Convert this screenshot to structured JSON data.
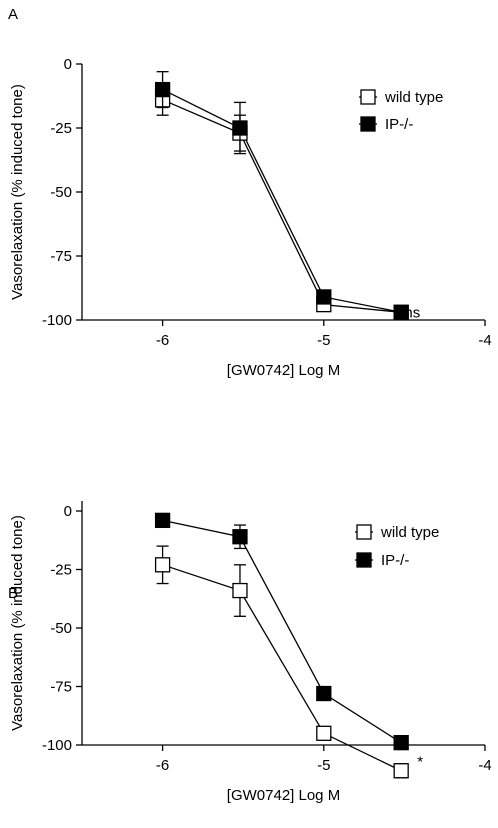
{
  "chart_data": [
    {
      "panel_label": "A",
      "type": "line",
      "xlabel": "[GW0742] Log M",
      "ylabel": "Vasorelaxation (% induced tone)",
      "xlim": [
        -6.5,
        -4
      ],
      "ylim": [
        -100,
        5
      ],
      "xticks": [
        "-6",
        "-5",
        "-4"
      ],
      "xtick_values": [
        -6,
        -5,
        -4
      ],
      "yticks": [
        "0",
        "-25",
        "-50",
        "-75",
        "-100"
      ],
      "ytick_values": [
        0,
        -25,
        -50,
        -75,
        -100
      ],
      "legend_position": "top-right",
      "annotation": {
        "text": "ns",
        "x": -4.5,
        "y": -97
      },
      "series": [
        {
          "name": "wild type",
          "marker": "open-square",
          "x": [
            -6,
            -5.52,
            -5,
            -4.52
          ],
          "y": [
            -14,
            -27,
            -94,
            -97
          ],
          "err": [
            6,
            7,
            2,
            1
          ]
        },
        {
          "name": "IP-/-",
          "marker": "filled-square",
          "x": [
            -6,
            -5.52,
            -5,
            -4.52
          ],
          "y": [
            -10,
            -25,
            -91,
            -97
          ],
          "err": [
            7,
            10,
            2,
            1
          ]
        }
      ]
    },
    {
      "panel_label": "B",
      "type": "line",
      "xlabel": "[GW0742] Log M",
      "ylabel": "Vasorelaxation (% induced tone)",
      "xlim": [
        -6.5,
        -4
      ],
      "ylim": [
        -125,
        5
      ],
      "xticks": [
        "-6",
        "-5",
        "-4"
      ],
      "xtick_values": [
        -6,
        -5,
        -4
      ],
      "yticks": [
        "0",
        "-25",
        "-50",
        "-75",
        "-100"
      ],
      "ytick_values": [
        0,
        -25,
        -50,
        -75,
        -100
      ],
      "legend_position": "top-right",
      "annotation": {
        "text": "*",
        "x": -4.42,
        "y": -107
      },
      "series": [
        {
          "name": "wild type",
          "marker": "open-square",
          "x": [
            -6,
            -5.52,
            -5,
            -4.52
          ],
          "y": [
            -23,
            -34,
            -95,
            -111
          ],
          "err": [
            8,
            11,
            2,
            3
          ]
        },
        {
          "name": "IP-/-",
          "marker": "filled-square",
          "x": [
            -6,
            -5.52,
            -5,
            -4.52
          ],
          "y": [
            -4,
            -11,
            -78,
            -99
          ],
          "err": [
            2,
            5,
            2,
            2
          ]
        }
      ]
    }
  ]
}
